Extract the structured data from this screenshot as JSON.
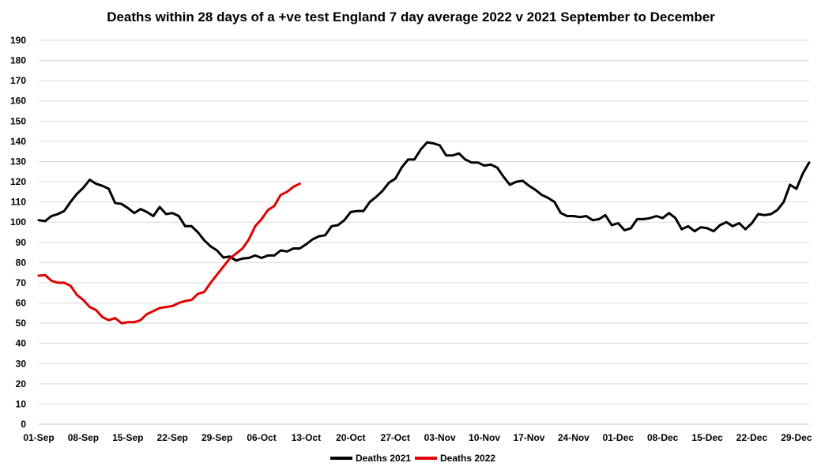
{
  "chart_data": {
    "type": "line",
    "title": "Deaths within 28 days of a +ve test England 7 day average 2022 v 2021 September to December",
    "xlabel": "",
    "ylabel": "",
    "ylim": [
      0,
      190
    ],
    "yticks": [
      0,
      10,
      20,
      30,
      40,
      50,
      60,
      70,
      80,
      90,
      100,
      110,
      120,
      130,
      140,
      150,
      160,
      170,
      180,
      190
    ],
    "x_start_label": "01-Sep",
    "x_days": 122,
    "xtick_labels": [
      "01-Sep",
      "08-Sep",
      "15-Sep",
      "22-Sep",
      "29-Sep",
      "06-Oct",
      "13-Oct",
      "20-Oct",
      "27-Oct",
      "03-Nov",
      "10-Nov",
      "17-Nov",
      "24-Nov",
      "01-Dec",
      "08-Dec",
      "15-Dec",
      "22-Dec",
      "29-Dec"
    ],
    "xtick_days": [
      0,
      7,
      14,
      21,
      28,
      35,
      42,
      49,
      56,
      63,
      70,
      77,
      84,
      91,
      98,
      105,
      112,
      119
    ],
    "grid": true,
    "legend_position": "bottom",
    "series": [
      {
        "name": "Deaths 2021",
        "color": "#000000",
        "values": [
          101,
          100.5,
          103,
          104,
          105.5,
          110,
          114,
          117,
          121,
          119,
          118,
          116.5,
          109.5,
          109,
          107,
          104.5,
          106.5,
          105,
          103,
          107.5,
          104,
          104.5,
          103,
          98,
          98,
          95,
          91,
          88,
          86,
          82.5,
          83,
          81,
          82,
          82.3,
          83.5,
          82.3,
          83.5,
          83.5,
          86,
          85.5,
          87,
          87,
          89,
          91.5,
          93,
          93.5,
          98,
          98.5,
          101,
          105,
          105.5,
          105.5,
          110,
          112.5,
          115.5,
          119.5,
          121.5,
          127,
          131,
          131,
          136,
          139.5,
          139,
          138,
          133,
          133,
          134,
          131,
          129.5,
          129.5,
          128,
          128.5,
          127,
          122.5,
          118.5,
          120,
          120.5,
          118,
          116,
          113.5,
          112,
          110,
          104.5,
          103,
          103,
          102.5,
          103,
          101,
          101.5,
          103.5,
          98.5,
          99.5,
          96,
          97,
          101.5,
          101.5,
          102,
          103,
          102,
          104.5,
          102,
          96.5,
          98,
          95.5,
          97.5,
          97,
          95.5,
          98.5,
          100,
          98,
          99.5,
          96.5,
          99.5,
          104,
          103.5,
          104,
          106,
          110,
          118.5,
          116.5,
          124,
          129.5
        ]
      },
      {
        "name": "Deaths 2022",
        "color": "#e00000",
        "values": [
          73.5,
          73.8,
          71,
          70,
          70,
          68.5,
          64,
          61.5,
          58,
          56.5,
          53,
          51.5,
          52.5,
          50,
          50.5,
          50.5,
          51.5,
          54.5,
          56,
          57.5,
          58,
          58.5,
          60,
          61,
          61.5,
          64.5,
          65.5,
          70,
          74,
          78,
          82,
          84.5,
          87,
          91.5,
          98,
          101.5,
          106,
          108,
          113.5,
          115,
          117.5,
          119
        ]
      }
    ]
  }
}
